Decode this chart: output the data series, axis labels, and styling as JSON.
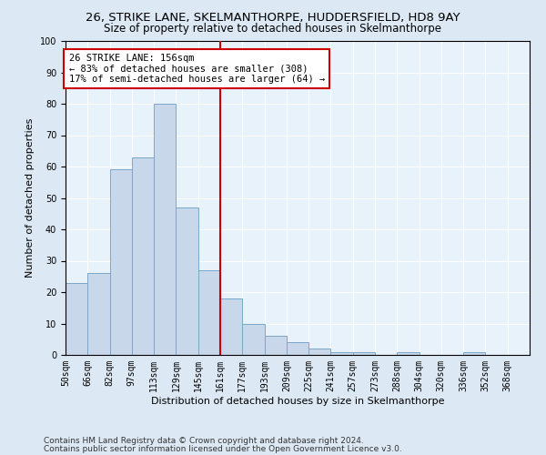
{
  "title1": "26, STRIKE LANE, SKELMANTHORPE, HUDDERSFIELD, HD8 9AY",
  "title2": "Size of property relative to detached houses in Skelmanthorpe",
  "xlabel": "Distribution of detached houses by size in Skelmanthorpe",
  "ylabel": "Number of detached properties",
  "footnote1": "Contains HM Land Registry data © Crown copyright and database right 2024.",
  "footnote2": "Contains public sector information licensed under the Open Government Licence v3.0.",
  "annotation_line1": "26 STRIKE LANE: 156sqm",
  "annotation_line2": "← 83% of detached houses are smaller (308)",
  "annotation_line3": "17% of semi-detached houses are larger (64) →",
  "bins": [
    50,
    66,
    82,
    97,
    113,
    129,
    145,
    161,
    177,
    193,
    209,
    225,
    241,
    257,
    273,
    288,
    304,
    320,
    336,
    352,
    368
  ],
  "bin_labels": [
    "50sqm",
    "66sqm",
    "82sqm",
    "97sqm",
    "113sqm",
    "129sqm",
    "145sqm",
    "161sqm",
    "177sqm",
    "193sqm",
    "209sqm",
    "225sqm",
    "241sqm",
    "257sqm",
    "273sqm",
    "288sqm",
    "304sqm",
    "320sqm",
    "336sqm",
    "352sqm",
    "368sqm"
  ],
  "heights": [
    23,
    26,
    59,
    63,
    80,
    47,
    27,
    18,
    10,
    6,
    4,
    2,
    1,
    1,
    0,
    1,
    0,
    0,
    1,
    0
  ],
  "bar_color": "#c8d8ea",
  "bar_edge_color": "#7aa8c8",
  "vline_color": "#cc0000",
  "annotation_box_edge": "#cc0000",
  "annotation_box_face": "#ffffff",
  "background_color": "#dce8f4",
  "plot_bg_color": "#e8f2fa",
  "ylim": [
    0,
    100
  ],
  "title1_fontsize": 9.5,
  "title2_fontsize": 8.5,
  "axis_label_fontsize": 8,
  "tick_fontsize": 7,
  "annotation_fontsize": 7.5,
  "footnote_fontsize": 6.5
}
